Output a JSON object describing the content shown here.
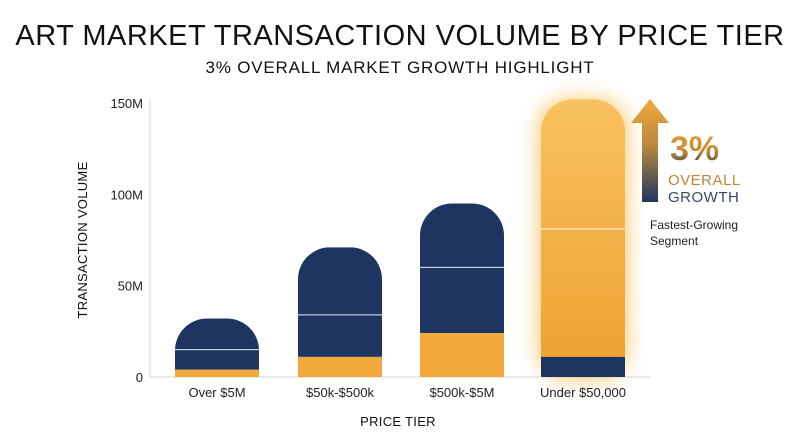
{
  "title": "ART MARKET TRANSACTION VOLUME BY PRICE TIER",
  "subtitle": "3% OVERALL MARKET GROWTH HIGHLIGHT",
  "colors": {
    "navy": "#1d3560",
    "gold": "#f0a93a",
    "gold_light": "#f8c15f",
    "axis": "#d6d6d6",
    "divider": "#ffffff"
  },
  "annotation": {
    "value": "3%",
    "line1": "OVERALL",
    "line2": "GROWTH",
    "note_line1": "Fastest-Growing",
    "note_line2": "Segment",
    "arrow_icon": "up-arrow-icon"
  },
  "chart_data": {
    "type": "bar",
    "stacked": true,
    "xlabel": "PRICE TIER",
    "ylabel": "TRANSACTION VOLUME",
    "ylim": [
      0,
      150
    ],
    "yticks": [
      0,
      50,
      100,
      150
    ],
    "ytick_labels": [
      "0",
      "50M",
      "100M",
      "150M"
    ],
    "categories": [
      "Over $5M",
      "$50k-$500k",
      "$500k-$5M",
      "Under $50,000"
    ],
    "highlight_category": "Under $50,000",
    "series": [
      {
        "color": "#f0a93a",
        "values": [
          4,
          11,
          24,
          141
        ]
      },
      {
        "color": "#1d3560",
        "values": [
          28,
          60,
          71,
          11
        ]
      }
    ],
    "divider_lines": [
      15,
      34,
      60,
      81
    ]
  }
}
